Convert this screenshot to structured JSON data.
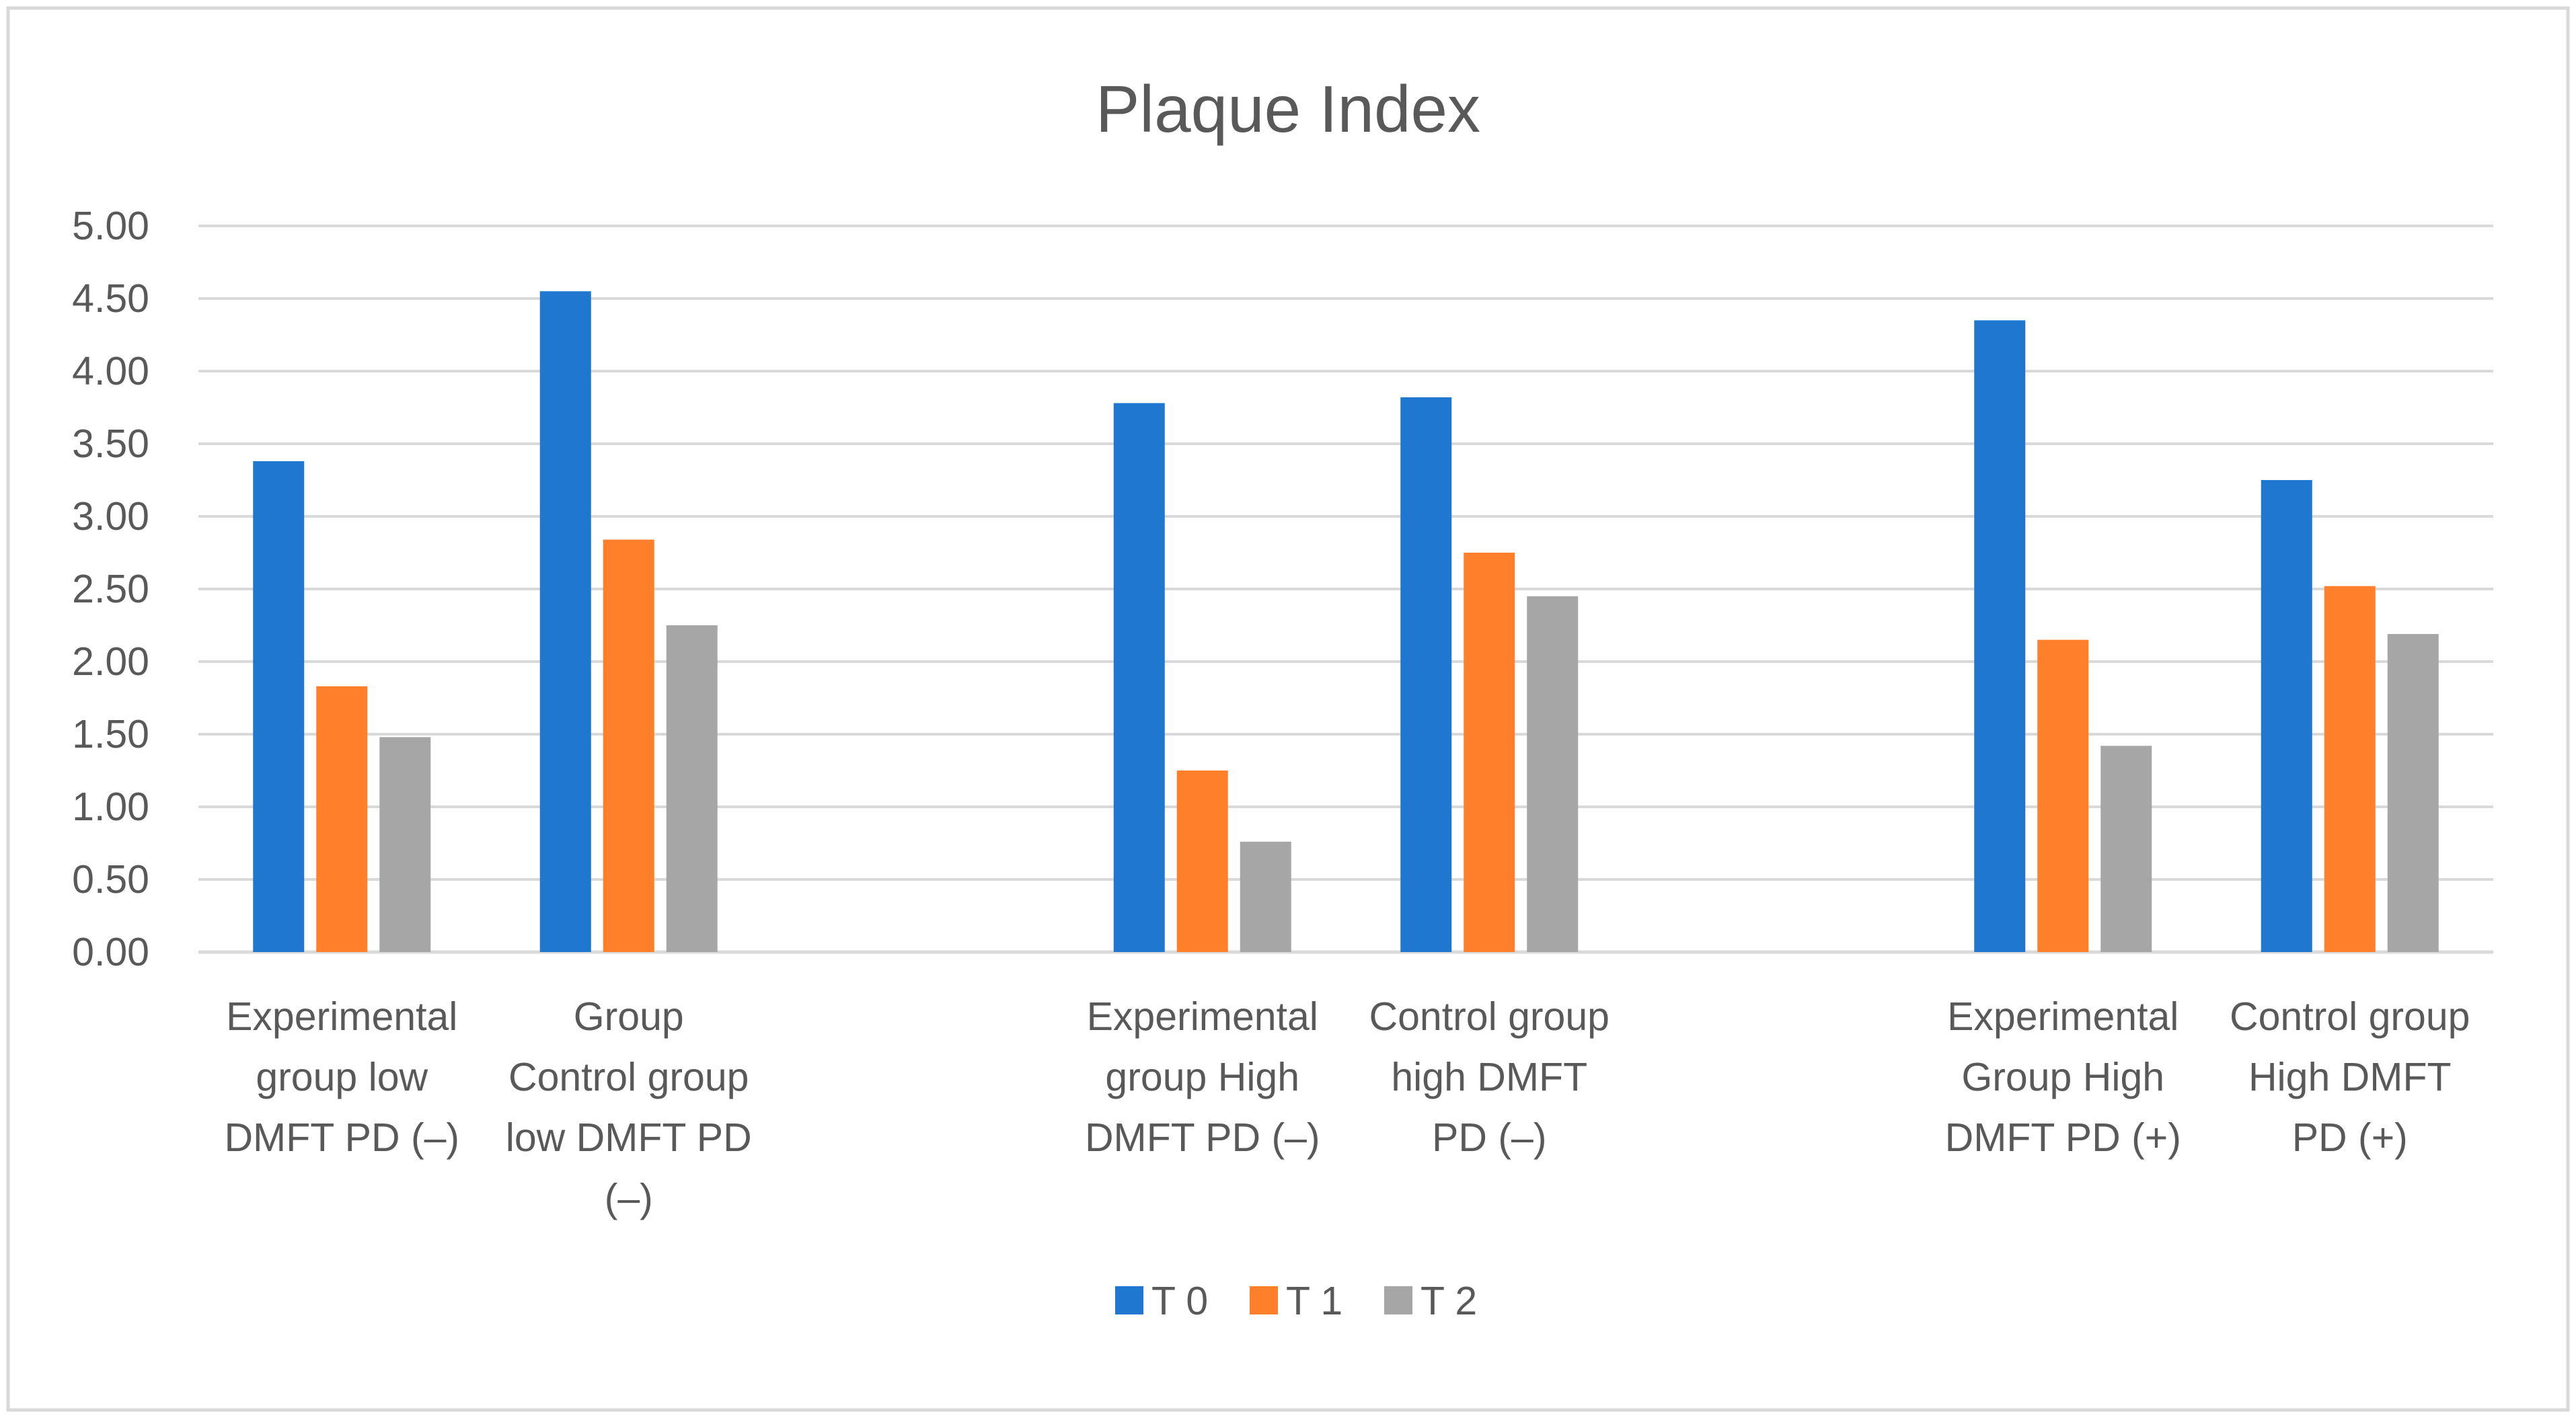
{
  "chart_data": {
    "type": "bar",
    "title": "Plaque Index",
    "xlabel": "",
    "ylabel": "",
    "ylim": [
      0,
      5
    ],
    "yticks": [
      "0.00",
      "0.50",
      "1.00",
      "1.50",
      "2.00",
      "2.50",
      "3.00",
      "3.50",
      "4.00",
      "4.50",
      "5.00"
    ],
    "grid": true,
    "legend_position": "bottom",
    "categories": [
      {
        "lines": [
          "Experimental",
          "group low",
          "DMFT PD (–)"
        ]
      },
      {
        "lines": [
          "Group",
          "Control group",
          "low DMFT PD",
          "(–)"
        ]
      },
      {
        "lines": [
          "Experimental",
          "group High",
          "DMFT PD (–)"
        ]
      },
      {
        "lines": [
          "Control group",
          "high DMFT",
          "PD (–)"
        ]
      },
      {
        "lines": [
          "Experimental",
          "Group High",
          "DMFT PD (+)"
        ]
      },
      {
        "lines": [
          "Control group",
          "High DMFT",
          "PD (+)"
        ]
      }
    ],
    "series": [
      {
        "name": "T 0",
        "color": "#1f77d0",
        "values": [
          3.38,
          4.55,
          3.78,
          3.82,
          4.35,
          3.25
        ]
      },
      {
        "name": "T 1",
        "color": "#ff7f2a",
        "values": [
          1.83,
          2.84,
          1.25,
          2.75,
          2.15,
          2.52
        ]
      },
      {
        "name": "T 2",
        "color": "#a6a6a6",
        "values": [
          1.48,
          2.25,
          0.76,
          2.45,
          1.42,
          2.19
        ]
      }
    ]
  }
}
